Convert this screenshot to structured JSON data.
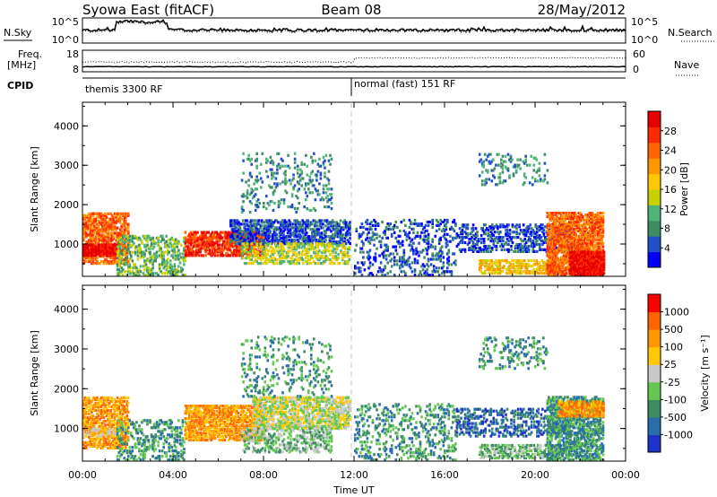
{
  "header": {
    "station": "Syowa East (fitACF)",
    "beam": "Beam 08",
    "date": "28/May/2012"
  },
  "strips": {
    "nsky_label": "N.Sky",
    "nsky_ticks": [
      "10^5",
      "10^0"
    ],
    "nsearch_label": "N.Search",
    "nsearch_ticks": [
      "10^5",
      "10^0"
    ],
    "freq_label_top": "Freq.",
    "freq_label_bottom": "[MHz]",
    "freq_ticks": [
      "18",
      "8"
    ],
    "nave_label": "Nave",
    "nave_ticks": [
      "60",
      "0"
    ],
    "cpid_label": "CPID",
    "cpid_segments": [
      "themis 3300 RF",
      "normal (fast) 151 RF"
    ]
  },
  "chart_data": [
    {
      "type": "heatmap",
      "name": "power",
      "ylabel": "Slant Range [km]",
      "ylim": [
        180,
        4600
      ],
      "yticks": [
        "1000",
        "2000",
        "3000",
        "4000"
      ],
      "xticks": [
        "00:00",
        "04:00",
        "08:00",
        "12:00",
        "16:00",
        "20:00",
        "00:00"
      ],
      "xlim_hours": [
        0,
        24
      ],
      "colorbar": {
        "label": "Power [dB]",
        "ticks": [
          "4",
          "8",
          "12",
          "16",
          "20",
          "24",
          "28"
        ],
        "colors": [
          "#0000ff",
          "#2050c8",
          "#3c8c64",
          "#50b478",
          "#c8d200",
          "#ffc800",
          "#ff9600",
          "#ff6400",
          "#ff2800",
          "#e60000"
        ]
      },
      "clusters": [
        {
          "t0": 0.0,
          "t1": 2.0,
          "r0": 500,
          "r1": 1800,
          "level": 7,
          "density": 0.55
        },
        {
          "t0": 0.0,
          "t1": 1.5,
          "r0": 700,
          "r1": 1000,
          "level": 9,
          "density": 0.7
        },
        {
          "t0": 1.5,
          "t1": 4.5,
          "r0": 200,
          "r1": 1200,
          "level": 3,
          "density": 0.3
        },
        {
          "t0": 4.5,
          "t1": 8.0,
          "r0": 700,
          "r1": 1300,
          "level": 8,
          "density": 0.6
        },
        {
          "t0": 6.5,
          "t1": 11.8,
          "r0": 1000,
          "r1": 1600,
          "level": 1,
          "density": 0.5
        },
        {
          "t0": 7.0,
          "t1": 11.8,
          "r0": 500,
          "r1": 1000,
          "level": 4,
          "density": 0.4
        },
        {
          "t0": 7.0,
          "t1": 11.0,
          "r0": 1800,
          "r1": 3300,
          "level": 2,
          "density": 0.12
        },
        {
          "t0": 12.0,
          "t1": 16.5,
          "r0": 200,
          "r1": 1600,
          "level": 1,
          "density": 0.18
        },
        {
          "t0": 16.5,
          "t1": 21.5,
          "r0": 800,
          "r1": 1500,
          "level": 1,
          "density": 0.35
        },
        {
          "t0": 17.5,
          "t1": 21.0,
          "r0": 250,
          "r1": 600,
          "level": 5,
          "density": 0.5
        },
        {
          "t0": 17.5,
          "t1": 20.5,
          "r0": 2500,
          "r1": 3300,
          "level": 2,
          "density": 0.15
        },
        {
          "t0": 20.5,
          "t1": 23.0,
          "r0": 200,
          "r1": 1800,
          "level": 7,
          "density": 0.65
        },
        {
          "t0": 21.5,
          "t1": 23.0,
          "r0": 200,
          "r1": 800,
          "level": 9,
          "density": 0.8
        }
      ]
    },
    {
      "type": "heatmap",
      "name": "velocity",
      "ylabel": "Slant Range [km]",
      "ylim": [
        180,
        4600
      ],
      "yticks": [
        "1000",
        "2000",
        "3000",
        "4000"
      ],
      "xticks": [
        "00:00",
        "04:00",
        "08:00",
        "12:00",
        "16:00",
        "20:00",
        "00:00"
      ],
      "xlabel": "Time UT",
      "xlim_hours": [
        0,
        24
      ],
      "colorbar": {
        "label": "Velocity [m s⁻¹]",
        "ticks": [
          "1000",
          "500",
          "100",
          "25",
          "-25",
          "-100",
          "-500",
          "-1000"
        ],
        "colors": [
          "#1e32c8",
          "#286eaa",
          "#3c8c64",
          "#64c850",
          "#c8c8c8",
          "#ffc800",
          "#ff9600",
          "#ff6400",
          "#ff0000"
        ]
      },
      "clusters": [
        {
          "t0": 0.0,
          "t1": 2.0,
          "r0": 500,
          "r1": 1800,
          "level": 6,
          "density": 0.5
        },
        {
          "t0": 0.0,
          "t1": 1.5,
          "r0": 800,
          "r1": 1000,
          "level": 5,
          "density": 0.5
        },
        {
          "t0": 1.5,
          "t1": 4.5,
          "r0": 200,
          "r1": 1200,
          "level": 2,
          "density": 0.25
        },
        {
          "t0": 4.5,
          "t1": 8.0,
          "r0": 700,
          "r1": 1600,
          "level": 6,
          "density": 0.6
        },
        {
          "t0": 7.5,
          "t1": 11.8,
          "r0": 1000,
          "r1": 1800,
          "level": 4,
          "density": 0.55
        },
        {
          "t0": 7.0,
          "t1": 11.0,
          "r0": 400,
          "r1": 1000,
          "level": 3,
          "density": 0.35
        },
        {
          "t0": 7.0,
          "t1": 11.0,
          "r0": 1800,
          "r1": 3300,
          "level": 2,
          "density": 0.12
        },
        {
          "t0": 12.0,
          "t1": 16.5,
          "r0": 200,
          "r1": 1600,
          "level": 2,
          "density": 0.18
        },
        {
          "t0": 16.5,
          "t1": 21.5,
          "r0": 800,
          "r1": 1500,
          "level": 1,
          "density": 0.3
        },
        {
          "t0": 17.5,
          "t1": 21.0,
          "r0": 250,
          "r1": 600,
          "level": 3,
          "density": 0.45
        },
        {
          "t0": 17.5,
          "t1": 20.5,
          "r0": 2500,
          "r1": 3300,
          "level": 2,
          "density": 0.15
        },
        {
          "t0": 20.5,
          "t1": 23.0,
          "r0": 200,
          "r1": 1800,
          "level": 2,
          "density": 0.55
        },
        {
          "t0": 21.0,
          "t1": 23.0,
          "r0": 1300,
          "r1": 1700,
          "level": 6,
          "density": 0.6
        }
      ]
    }
  ]
}
